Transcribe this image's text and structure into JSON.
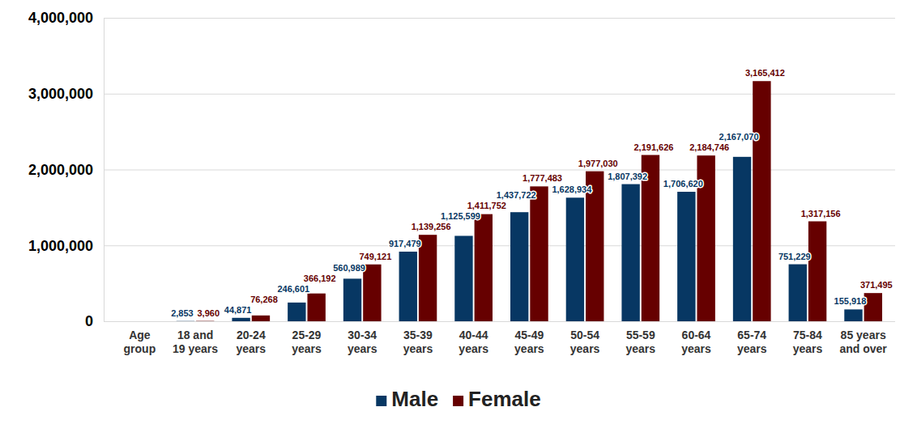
{
  "chart_data": {
    "type": "bar",
    "categories": [
      "Age group",
      "18 and 19 years",
      "20-24 years",
      "25-29 years",
      "30-34 years",
      "35-39 years",
      "40-44 years",
      "45-49 years",
      "50-54 years",
      "55-59 years",
      "60-64 years",
      "65-74 years",
      "75-84 years",
      "85 years and over"
    ],
    "series": [
      {
        "name": "Male",
        "color": "#073763",
        "values": [
          null,
          2853,
          44871,
          246601,
          560989,
          917479,
          1125599,
          1437722,
          1628934,
          1807392,
          1706620,
          2167070,
          751229,
          155918
        ],
        "value_labels": [
          null,
          "2,853",
          "44,871",
          "246,601",
          "560,989",
          "917,479",
          "1,125,599",
          "1,437,722",
          "1,628,934",
          "1,807,392",
          "1,706,620",
          "2,167,070",
          "751,229",
          "155,918"
        ]
      },
      {
        "name": "Female",
        "color": "#660000",
        "values": [
          null,
          3960,
          76268,
          366192,
          749121,
          1139256,
          1411752,
          1777483,
          1977030,
          2191626,
          2184746,
          3165412,
          1317156,
          371495
        ],
        "value_labels": [
          null,
          "3,960",
          "76,268",
          "366,192",
          "749,121",
          "1,139,256",
          "1,411,752",
          "1,777,483",
          "1,977,030",
          "2,191,626",
          "2,184,746",
          "3,165,412",
          "1,317,156",
          "371,495"
        ]
      }
    ],
    "ylim": [
      0,
      4000000
    ],
    "yticks": [
      0,
      {
        "value": 1000000,
        "label": "1,000,000"
      },
      {
        "value": 2000000,
        "label": "2,000,000"
      },
      {
        "value": 3000000,
        "label": "3,000,000"
      },
      {
        "value": 4000000,
        "label": "4,000,000"
      }
    ],
    "grid": true,
    "legend": "bottom",
    "data_labels": true
  }
}
